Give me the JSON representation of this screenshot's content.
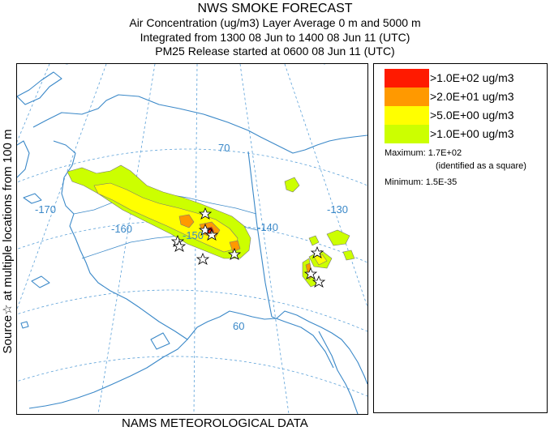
{
  "titles": [
    "NWS SMOKE FORECAST",
    "Air Concentration (ug/m3) Layer Average    0 m and  5000 m",
    "Integrated from 1300 08 Jun to 1400 08 Jun 11 (UTC)",
    "PM25 Release started at 0600 08 Jun 11 (UTC)"
  ],
  "side_label": "Source☆ at multiple locations  from   100 m",
  "bottom_label": "NAMS METEOROLOGICAL DATA",
  "legend": {
    "items": [
      {
        "label": ">1.0E+02 ug/m3",
        "color": "#ff1a00"
      },
      {
        "label": ">2.0E+01 ug/m3",
        "color": "#ff9900"
      },
      {
        "label": ">5.0E+00 ug/m3",
        "color": "#ffff00"
      },
      {
        "label": ">1.0E+00 ug/m3",
        "color": "#ccff00"
      }
    ],
    "maximum": "Maximum: 1.7E+02",
    "maximum_note": "(identified as a square)",
    "minimum": "Minimum: 1.5E-35"
  },
  "map": {
    "graticule_labels": {
      "lon_170": "-170",
      "lon_160": "-160",
      "lon_150": "-150",
      "lon_140": "-140",
      "lon_130": "-130",
      "lat_70": "70",
      "lat_60": "60"
    },
    "colors": {
      "coast": "#3a88c8",
      "grid": "#5aa0d8",
      "contour_line": "#777777"
    }
  }
}
